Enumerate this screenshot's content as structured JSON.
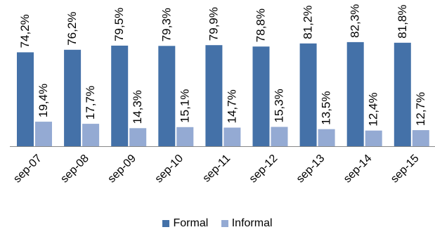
{
  "chart_data": {
    "type": "bar",
    "categories": [
      "sep-07",
      "sep-08",
      "sep-09",
      "sep-10",
      "sep-11",
      "sep-12",
      "sep-13",
      "sep-14",
      "sep-15"
    ],
    "series": [
      {
        "name": "Formal",
        "color": "#4471A8",
        "values": [
          74.2,
          76.2,
          79.5,
          79.3,
          79.9,
          78.8,
          81.2,
          82.3,
          81.8
        ],
        "labels": [
          "74,2%",
          "76,2%",
          "79,5%",
          "79,3%",
          "79,9%",
          "78,8%",
          "81,2%",
          "82,3%",
          "81,8%"
        ]
      },
      {
        "name": "Informal",
        "color": "#94AAD3",
        "values": [
          19.4,
          17.7,
          14.3,
          15.1,
          14.7,
          15.3,
          13.5,
          12.4,
          12.7
        ],
        "labels": [
          "19,4%",
          "17,7%",
          "14,3%",
          "15,1%",
          "14,7%",
          "15,3%",
          "13,5%",
          "12,4%",
          "12,7%"
        ]
      }
    ],
    "ylim": [
      0,
      100
    ],
    "grid": false,
    "legend_position": "bottom"
  }
}
